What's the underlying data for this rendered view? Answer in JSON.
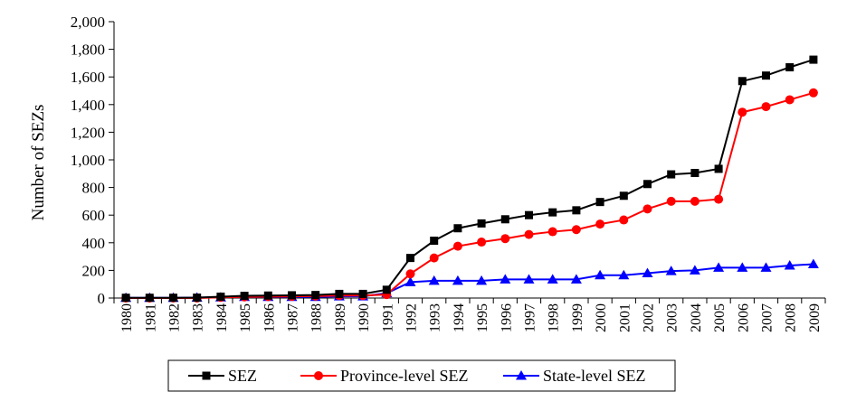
{
  "chart_data": {
    "type": "line",
    "title": "",
    "xlabel": "",
    "ylabel": "Number of SEZs",
    "ylim": [
      0,
      2000
    ],
    "yticks": [
      0,
      200,
      400,
      600,
      800,
      1000,
      1200,
      1400,
      1600,
      1800,
      2000
    ],
    "ytick_labels": [
      "0",
      "200",
      "400",
      "600",
      "800",
      "1,000",
      "1,200",
      "1,400",
      "1,600",
      "1,800",
      "2,000"
    ],
    "grid": false,
    "legend_position": "bottom",
    "categories": [
      "1980",
      "1981",
      "1982",
      "1983",
      "1984",
      "1985",
      "1986",
      "1987",
      "1988",
      "1989",
      "1990",
      "1991",
      "1992",
      "1993",
      "1994",
      "1995",
      "1996",
      "1997",
      "1998",
      "1999",
      "2000",
      "2001",
      "2002",
      "2003",
      "2004",
      "2005",
      "2006",
      "2007",
      "2008",
      "2009"
    ],
    "series": [
      {
        "name": "SEZ",
        "color": "#000000",
        "marker": "square",
        "values": [
          2,
          2,
          2,
          3,
          10,
          16,
          18,
          20,
          22,
          30,
          30,
          60,
          290,
          415,
          505,
          540,
          570,
          600,
          620,
          635,
          695,
          740,
          825,
          895,
          905,
          935,
          1570,
          1610,
          1670,
          1725
        ]
      },
      {
        "name": "Province-level SEZ",
        "color": "#ff0000",
        "marker": "circle",
        "values": [
          0,
          0,
          0,
          0,
          5,
          8,
          10,
          12,
          14,
          18,
          18,
          25,
          175,
          290,
          375,
          405,
          430,
          460,
          480,
          495,
          535,
          565,
          645,
          700,
          700,
          715,
          1345,
          1385,
          1435,
          1485
        ]
      },
      {
        "name": "State-level SEZ",
        "color": "#0000ff",
        "marker": "triangle",
        "values": [
          2,
          2,
          2,
          3,
          5,
          8,
          8,
          8,
          8,
          12,
          12,
          35,
          115,
          125,
          125,
          125,
          135,
          135,
          135,
          135,
          165,
          165,
          180,
          195,
          200,
          220,
          220,
          220,
          235,
          245
        ]
      }
    ]
  }
}
